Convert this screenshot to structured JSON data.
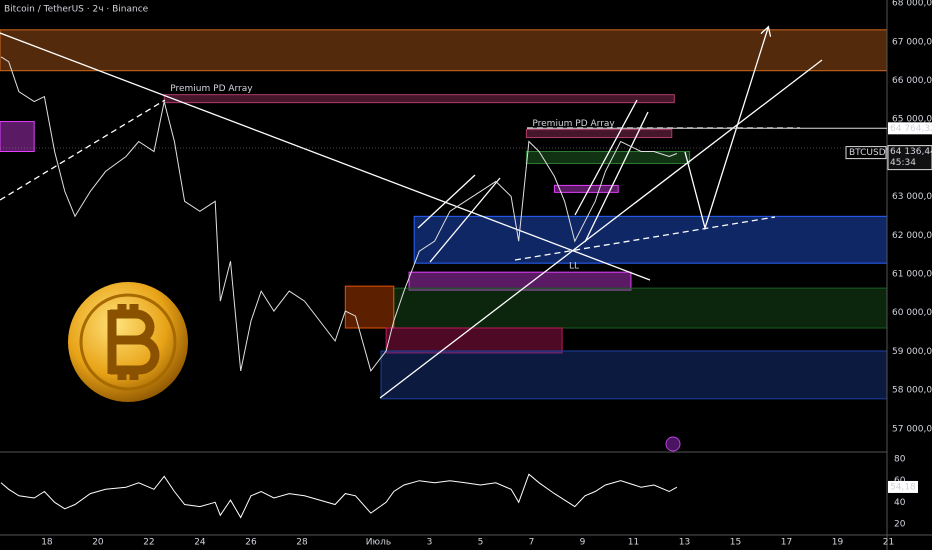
{
  "chart_data": {
    "type": "line",
    "title": "Bitcoin / TetherUS · 2ч · Binance",
    "x": [
      -1.8,
      -1.5,
      -1.1,
      -0.5,
      -0.1,
      0.3,
      0.7,
      1.1,
      1.7,
      2.3,
      3.1,
      3.6,
      4.2,
      4.6,
      5.0,
      5.4,
      6.0,
      6.6,
      6.8,
      7.2,
      7.6,
      8.0,
      8.4,
      8.9,
      9.5,
      10.1,
      10.7,
      11.3,
      11.7,
      12.1,
      12.7,
      13.3,
      13.6,
      14.0,
      14.6,
      15.2,
      15.8,
      16.4,
      17.0,
      17.6,
      18.2,
      18.5,
      18.9,
      19.3,
      19.9,
      20.3,
      20.7,
      21.1,
      21.5,
      21.9,
      22.5,
      23.3,
      23.8,
      24.4,
      24.7
    ],
    "series": [
      {
        "name": "BTCUSDT",
        "color": "#e0e0e0",
        "values": [
          66613,
          66485,
          65711,
          65454,
          65583,
          64165,
          63135,
          62490,
          63135,
          63650,
          64036,
          64423,
          64165,
          65454,
          64423,
          62877,
          62619,
          62877,
          60300,
          61330,
          58496,
          59784,
          60557,
          60042,
          60557,
          60300,
          59784,
          59269,
          60042,
          59913,
          58496,
          59011,
          59784,
          60557,
          61588,
          61846,
          62619,
          62877,
          63135,
          63392,
          63006,
          61846,
          64423,
          64165,
          63521,
          62877,
          61846,
          62361,
          62877,
          63650,
          64423,
          64165,
          64165,
          64036,
          64114
        ]
      },
      {
        "color": "#ffffff",
        "axis": "y2",
        "values": [
          58,
          52,
          46,
          44,
          50,
          40,
          34,
          38,
          48,
          52,
          54,
          58,
          52,
          64,
          50,
          38,
          36,
          40,
          28,
          42,
          26,
          46,
          50,
          44,
          48,
          46,
          42,
          38,
          48,
          46,
          30,
          40,
          50,
          56,
          60,
          58,
          60,
          58,
          56,
          58,
          52,
          40,
          66,
          58,
          48,
          42,
          36,
          46,
          50,
          56,
          60,
          54,
          56,
          50,
          54
        ]
      }
    ],
    "xlim": [
      -1.84,
      32.94
    ],
    "xticks": [
      {
        "value": 0,
        "label": "18"
      },
      {
        "value": 2,
        "label": "20"
      },
      {
        "value": 4,
        "label": "22"
      },
      {
        "value": 6,
        "label": "24"
      },
      {
        "value": 8,
        "label": "26"
      },
      {
        "value": 10,
        "label": "28"
      },
      {
        "value": 13,
        "label": "Июль"
      },
      {
        "value": 15,
        "label": "3"
      },
      {
        "value": 17,
        "label": "5"
      },
      {
        "value": 19,
        "label": "7"
      },
      {
        "value": 21,
        "label": "9"
      },
      {
        "value": 23,
        "label": "11"
      },
      {
        "value": 25,
        "label": "13"
      },
      {
        "value": 27,
        "label": "15"
      },
      {
        "value": 29,
        "label": "17"
      },
      {
        "value": 31,
        "label": "19"
      },
      {
        "value": 33,
        "label": "21"
      }
    ],
    "ylim": [
      56400,
      68080
    ],
    "yticks": [
      {
        "value": 68000,
        "label": "68 000,00"
      },
      {
        "value": 67000,
        "label": "67 000,00"
      },
      {
        "value": 66000,
        "label": "66 000,00"
      },
      {
        "value": 65000,
        "label": "65 000,00"
      },
      {
        "value": 64000,
        "label": "64 000,00"
      },
      {
        "value": 63000,
        "label": "63 000,00"
      },
      {
        "value": 62000,
        "label": "62 000,00"
      },
      {
        "value": 61000,
        "label": "61 000,00"
      },
      {
        "value": 60000,
        "label": "60 000,00"
      },
      {
        "value": 59000,
        "label": "59 000,00"
      },
      {
        "value": 58000,
        "label": "58 000,00"
      },
      {
        "value": 57000,
        "label": "57 000,00"
      }
    ],
    "y2lim": [
      9.8,
      83.7
    ],
    "y2ticks": [
      80,
      60,
      40,
      20
    ],
    "rsi_last": {
      "value": 54.18,
      "label": "54,18"
    },
    "price_line": {
      "value": 64764.32,
      "label": "64 764,32"
    },
    "last_price": {
      "value": 64136.44,
      "label": "64 136,44"
    },
    "countdown": "45:34",
    "symbol": "BTCUSDT",
    "low_label": "LL",
    "grid": false,
    "zones": [
      {
        "x": [
          -1.84,
          32.94
        ],
        "y": [
          66253,
          67309
        ],
        "color": "#d2691e"
      },
      {
        "x": [
          4.6,
          24.6
        ],
        "y": [
          65428,
          65634
        ],
        "color": "#b03a6a",
        "label": "Premium PD Array"
      },
      {
        "x": [
          -1.84,
          -0.5
        ],
        "y": [
          64165,
          64939
        ],
        "color": "#e040fb"
      },
      {
        "x": [
          18.8,
          24.5
        ],
        "y": [
          64526,
          64732
        ],
        "color": "#b03a6a",
        "label": "Premium PD Array"
      },
      {
        "x": [
          18.8,
          25.2
        ],
        "y": [
          63856,
          64165
        ],
        "color": "#2e7d32"
      },
      {
        "x": [
          19.9,
          22.4
        ],
        "y": [
          63109,
          63289
        ],
        "color": "#e040fb"
      },
      {
        "x": [
          14.4,
          32.94
        ],
        "y": [
          61279,
          62490
        ],
        "color": "#2962ff"
      },
      {
        "x": [
          14.2,
          22.9
        ],
        "y": [
          60583,
          61047
        ],
        "color": "#e040fb"
      },
      {
        "x": [
          13.6,
          32.94
        ],
        "y": [
          59604,
          60635
        ],
        "color": "#1b5e20"
      },
      {
        "x": [
          11.7,
          13.6
        ],
        "y": [
          59604,
          60686
        ],
        "color": "#e65100"
      },
      {
        "x": [
          13.3,
          20.2
        ],
        "y": [
          58960,
          59604
        ],
        "color": "#c2185b"
      },
      {
        "x": [
          13.1,
          32.94
        ],
        "y": [
          57774,
          59011
        ],
        "color": "#1e40a0"
      }
    ]
  }
}
